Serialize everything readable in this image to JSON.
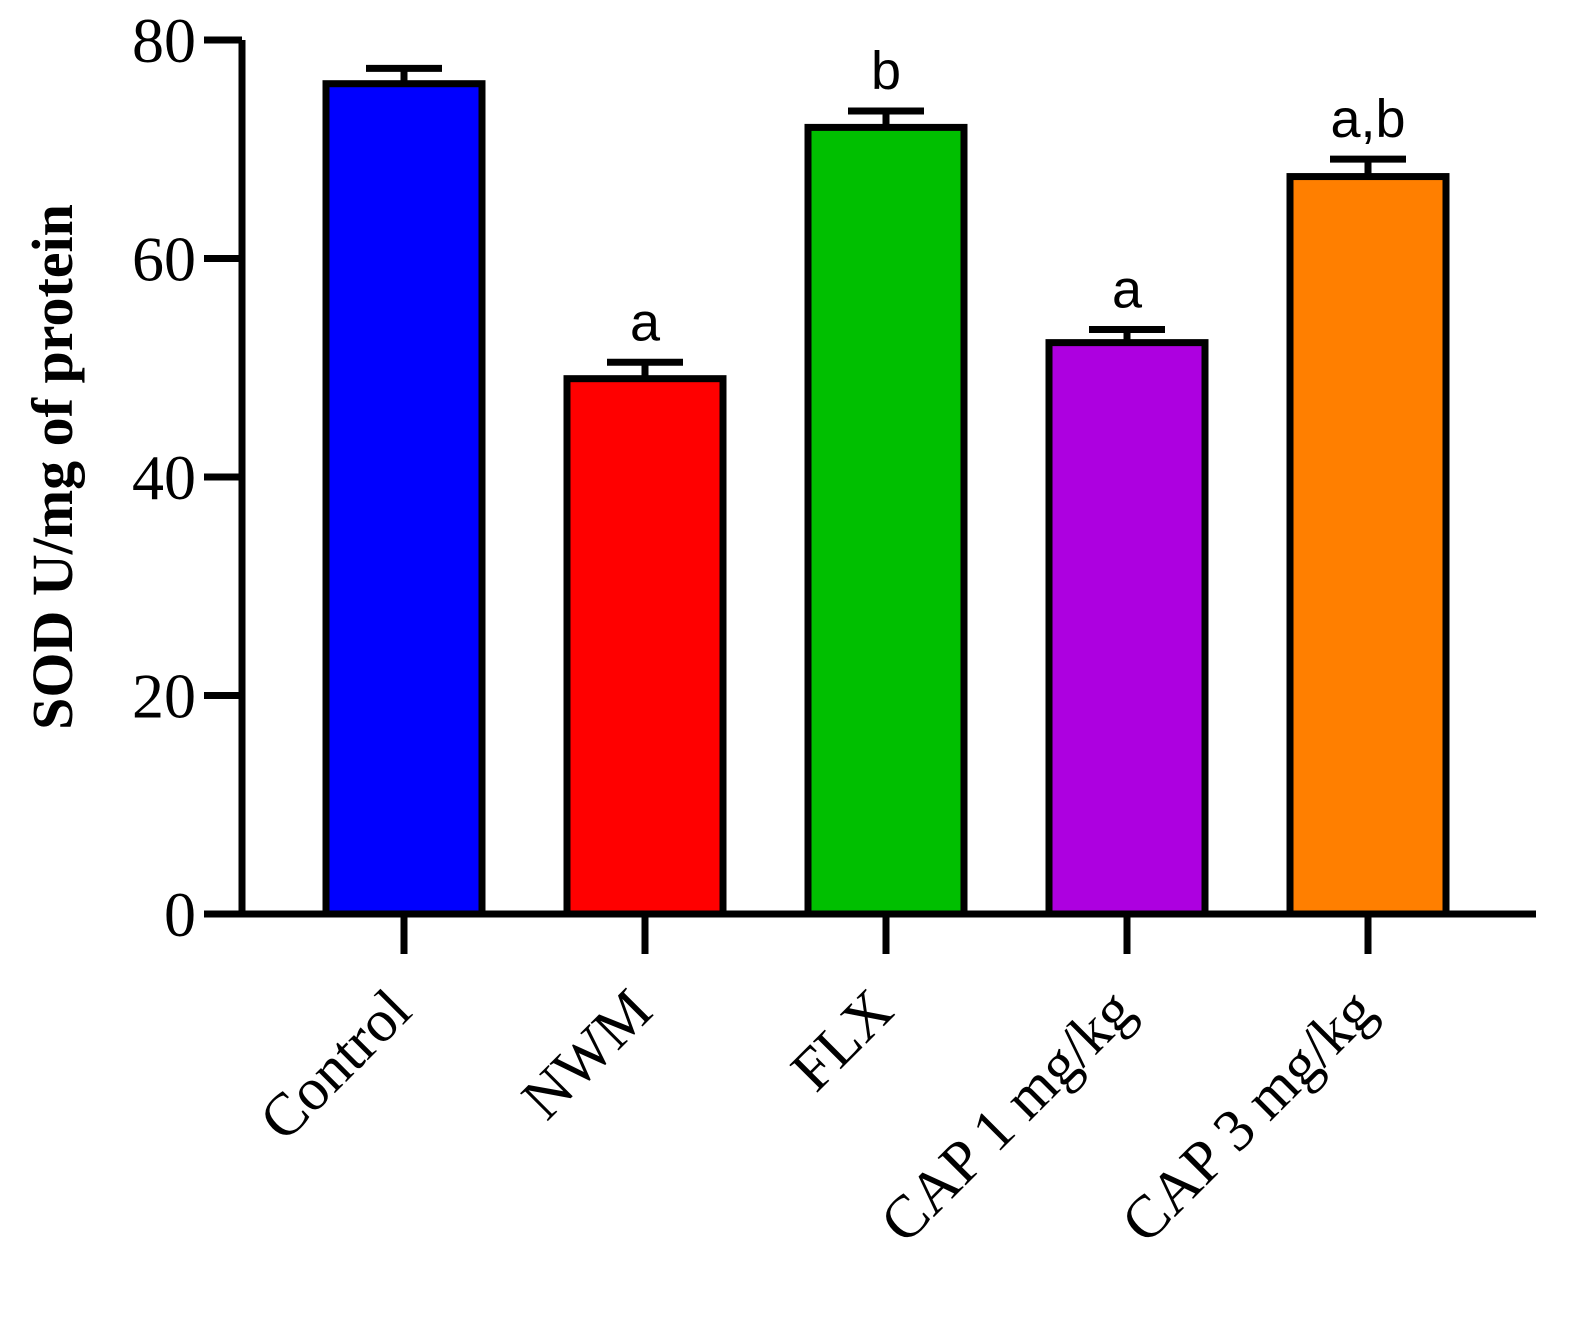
{
  "chart_data": {
    "type": "bar",
    "title": "",
    "xlabel": "",
    "ylabel": "SOD U/mg of protein",
    "ylim": [
      0,
      80
    ],
    "yticks": [
      0,
      20,
      40,
      60,
      80
    ],
    "grid": false,
    "categories": [
      "Control",
      "NWM",
      "FLX",
      "CAP 1 mg/kg",
      "CAP 3 mg/kg"
    ],
    "values": [
      76,
      49,
      72,
      52.3,
      67.5
    ],
    "errors": [
      1.4,
      1.5,
      1.5,
      1.2,
      1.6
    ],
    "significance": [
      "",
      "a",
      "b",
      "a",
      "a,b"
    ],
    "colors": [
      "#0000ff",
      "#ff0000",
      "#00bf00",
      "#ad00e0",
      "#ff7f00"
    ]
  }
}
